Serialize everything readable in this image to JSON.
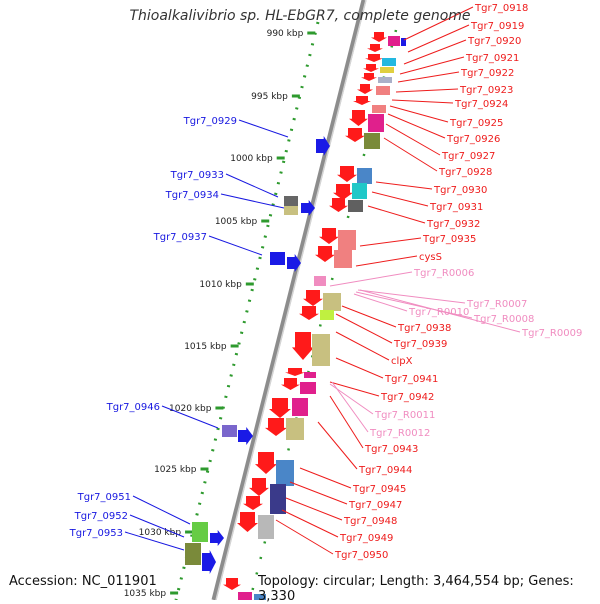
{
  "title": "Thioalkalivibrio sp. HL-EbGR7, complete genome",
  "accession": "Accession: NC_011901",
  "topology": "Topology: circular; Length: 3,464,554 bp; Genes: 3,330",
  "colors": {
    "forward_label": "#1818e0",
    "reverse_label": "#ee1c1c",
    "rna_label": "#f08cc0",
    "backbone": "#9a9a9a",
    "tick": "#2e9a2e"
  },
  "scale_ticks": [
    "990 kbp",
    "995 kbp",
    "1000 kbp",
    "1005 kbp",
    "1010 kbp",
    "1015 kbp",
    "1020 kbp",
    "1025 kbp",
    "1030 kbp",
    "1035 kbp"
  ],
  "forward_labels": [
    "Tgr7_0929",
    "Tgr7_0933",
    "Tgr7_0934",
    "Tgr7_0937",
    "Tgr7_0946",
    "Tgr7_0951",
    "Tgr7_0952",
    "Tgr7_0953"
  ],
  "reverse_labels": [
    "Tgr7_0918",
    "Tgr7_0919",
    "Tgr7_0920",
    "Tgr7_0921",
    "Tgr7_0922",
    "Tgr7_0923",
    "Tgr7_0924",
    "Tgr7_0925",
    "Tgr7_0926",
    "Tgr7_0927",
    "Tgr7_0928",
    "Tgr7_0930",
    "Tgr7_0931",
    "Tgr7_0932",
    "Tgr7_0935",
    "cysS",
    "Tgr7_R0006",
    "Tgr7_R0007",
    "Tgr7_R0010",
    "Tgr7_R0008",
    "Tgr7_R0009",
    "Tgr7_0938",
    "Tgr7_0939",
    "clpX",
    "Tgr7_0941",
    "Tgr7_0942",
    "Tgr7_R0011",
    "Tgr7_R0012",
    "Tgr7_0943",
    "Tgr7_0944",
    "Tgr7_0945",
    "Tgr7_0947",
    "Tgr7_0948",
    "Tgr7_0949",
    "Tgr7_0950"
  ],
  "rna_labels": [
    "Tgr7_R0006",
    "Tgr7_R0007",
    "Tgr7_R0010",
    "Tgr7_R0008",
    "Tgr7_R0009",
    "Tgr7_R0011",
    "Tgr7_R0012"
  ]
}
